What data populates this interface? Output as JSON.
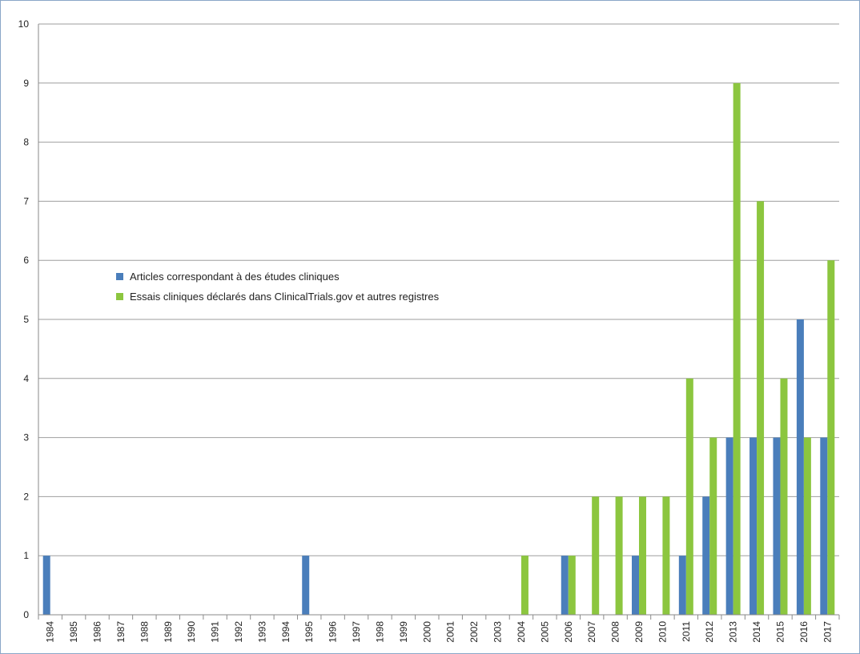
{
  "chart_data": {
    "type": "bar",
    "categories": [
      "1984",
      "1985",
      "1986",
      "1987",
      "1988",
      "1989",
      "1990",
      "1991",
      "1992",
      "1993",
      "1994",
      "1995",
      "1996",
      "1997",
      "1998",
      "1999",
      "2000",
      "2001",
      "2002",
      "2003",
      "2004",
      "2005",
      "2006",
      "2007",
      "2008",
      "2009",
      "2010",
      "2011",
      "2012",
      "2013",
      "2014",
      "2015",
      "2016",
      "2017"
    ],
    "series": [
      {
        "name": "Articles correspondant à des études cliniques",
        "color": "#4a7ebb",
        "values": [
          1,
          0,
          0,
          0,
          0,
          0,
          0,
          0,
          0,
          0,
          0,
          1,
          0,
          0,
          0,
          0,
          0,
          0,
          0,
          0,
          0,
          0,
          1,
          0,
          0,
          1,
          0,
          1,
          2,
          3,
          3,
          3,
          5,
          3
        ]
      },
      {
        "name": "Essais cliniques déclarés dans ClinicalTrials.gov et autres registres",
        "color": "#8cc63f",
        "values": [
          0,
          0,
          0,
          0,
          0,
          0,
          0,
          0,
          0,
          0,
          0,
          0,
          0,
          0,
          0,
          0,
          0,
          0,
          0,
          0,
          1,
          0,
          1,
          2,
          2,
          2,
          2,
          4,
          3,
          9,
          7,
          4,
          3,
          6
        ]
      }
    ],
    "title": "",
    "xlabel": "",
    "ylabel": "",
    "ylim": [
      0,
      10
    ],
    "yticks": [
      0,
      1,
      2,
      3,
      4,
      5,
      6,
      7,
      8,
      9,
      10
    ],
    "grid": true,
    "legend_position": "left-middle",
    "gridline_color": "#9e9e9e"
  }
}
